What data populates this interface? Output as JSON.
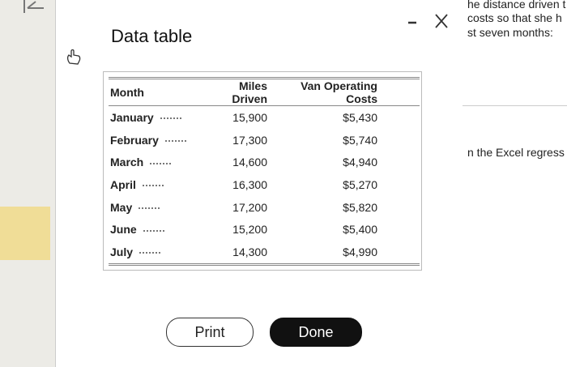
{
  "dialog": {
    "title": "Data table",
    "buttons": [
      "Print",
      "Done"
    ]
  },
  "table": {
    "headers": [
      "Month",
      "Miles Driven",
      "Van Operating Costs"
    ],
    "rows": [
      [
        "January",
        "15,900",
        "$5,430"
      ],
      [
        "February",
        "17,300",
        "$5,740"
      ],
      [
        "March",
        "14,600",
        "$4,940"
      ],
      [
        "April",
        "16,300",
        "$5,270"
      ],
      [
        "May",
        "17,200",
        "$5,820"
      ],
      [
        "June",
        "15,200",
        "$5,400"
      ],
      [
        "July",
        "14,300",
        "$4,990"
      ]
    ]
  },
  "background": {
    "lines": [
      "he distance driven t",
      "costs so that she h",
      "st seven months:",
      "n the Excel regress"
    ]
  }
}
